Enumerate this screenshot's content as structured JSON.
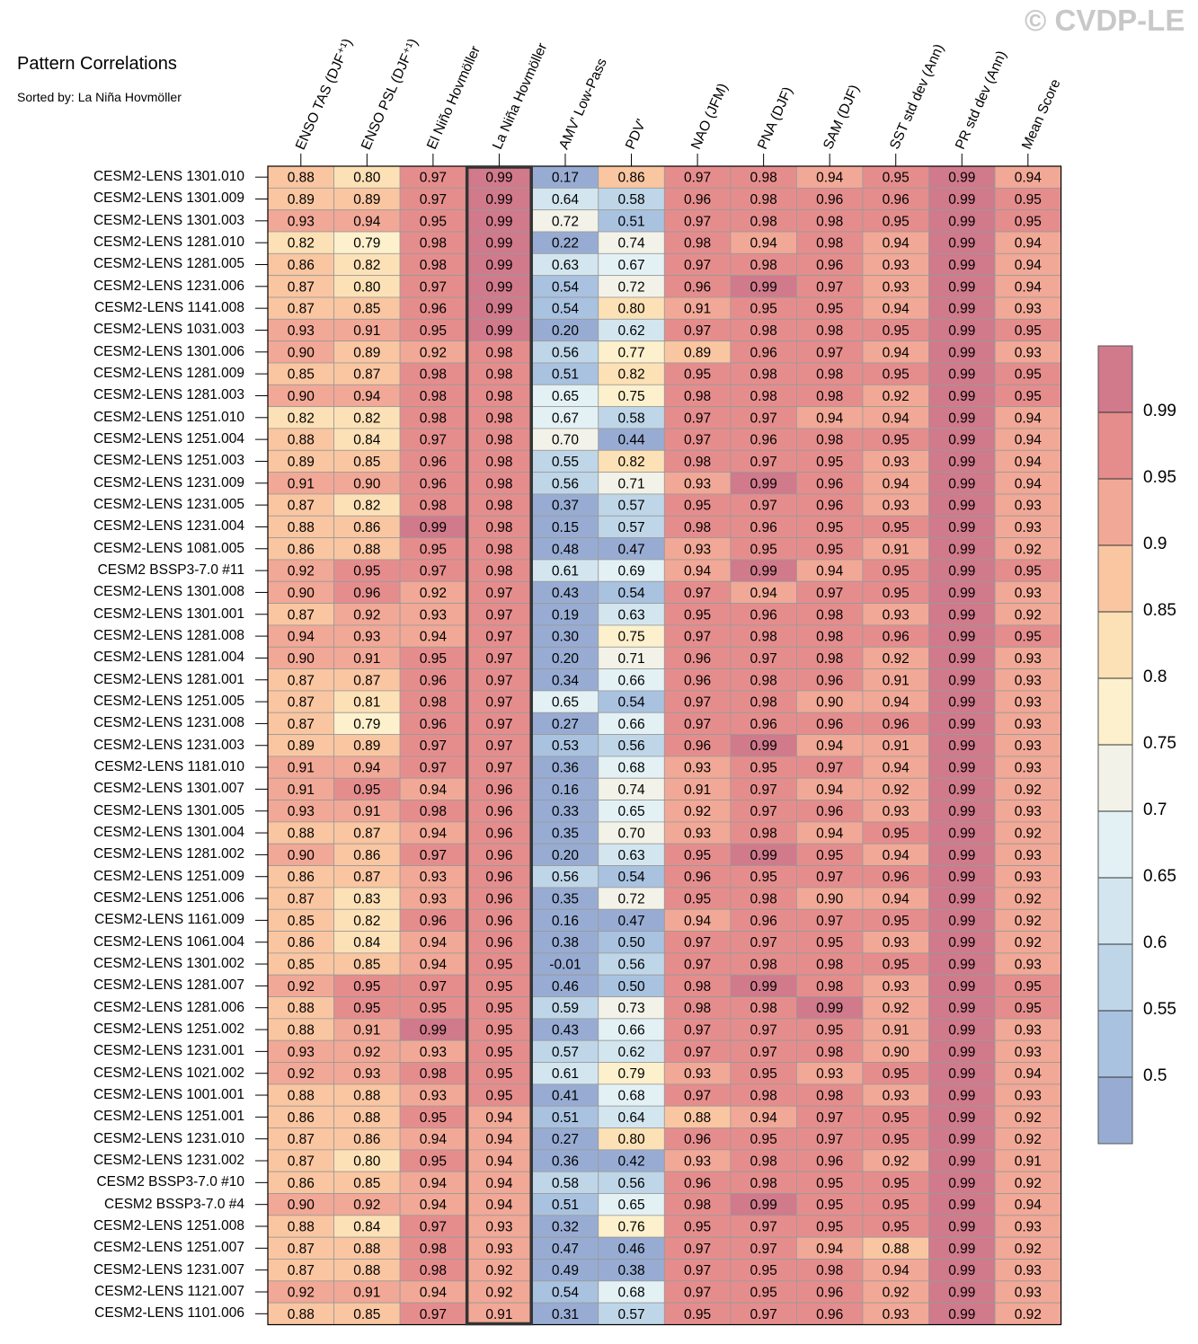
{
  "watermark": "© CVDP-LE",
  "title": "Pattern Correlations",
  "subtitle": "Sorted by: La Niña Hovmöller",
  "chart_data": {
    "type": "heatmap",
    "title": "Pattern Correlations",
    "subtitle": "Sorted by: La Niña Hovmöller",
    "highlighted_column": "La Niña Hovmöller",
    "columns": [
      "ENSO TAS (DJF⁺¹)",
      "ENSO PSL (DJF⁺¹)",
      "El Niño Hovmöller",
      "La Niña Hovmöller",
      "AMV' Low-Pass",
      "PDV'",
      "NAO (JFM)",
      "PNA (DJF)",
      "SAM (DJF)",
      "SST std dev (Ann)",
      "PR std dev (Ann)",
      "Mean Score"
    ],
    "rows": [
      "CESM2-LENS 1301.010",
      "CESM2-LENS 1301.009",
      "CESM2-LENS 1301.003",
      "CESM2-LENS 1281.010",
      "CESM2-LENS 1281.005",
      "CESM2-LENS 1231.006",
      "CESM2-LENS 1141.008",
      "CESM2-LENS 1031.003",
      "CESM2-LENS 1301.006",
      "CESM2-LENS 1281.009",
      "CESM2-LENS 1281.003",
      "CESM2-LENS 1251.010",
      "CESM2-LENS 1251.004",
      "CESM2-LENS 1251.003",
      "CESM2-LENS 1231.009",
      "CESM2-LENS 1231.005",
      "CESM2-LENS 1231.004",
      "CESM2-LENS 1081.005",
      "CESM2 BSSP3-7.0 #11",
      "CESM2-LENS 1301.008",
      "CESM2-LENS 1301.001",
      "CESM2-LENS 1281.008",
      "CESM2-LENS 1281.004",
      "CESM2-LENS 1281.001",
      "CESM2-LENS 1251.005",
      "CESM2-LENS 1231.008",
      "CESM2-LENS 1231.003",
      "CESM2-LENS 1181.010",
      "CESM2-LENS 1301.007",
      "CESM2-LENS 1301.005",
      "CESM2-LENS 1301.004",
      "CESM2-LENS 1281.002",
      "CESM2-LENS 1251.009",
      "CESM2-LENS 1251.006",
      "CESM2-LENS 1161.009",
      "CESM2-LENS 1061.004",
      "CESM2-LENS 1301.002",
      "CESM2-LENS 1281.007",
      "CESM2-LENS 1281.006",
      "CESM2-LENS 1251.002",
      "CESM2-LENS 1231.001",
      "CESM2-LENS 1021.002",
      "CESM2-LENS 1001.001",
      "CESM2-LENS 1251.001",
      "CESM2-LENS 1231.010",
      "CESM2-LENS 1231.002",
      "CESM2 BSSP3-7.0 #10",
      "CESM2 BSSP3-7.0 #4",
      "CESM2-LENS 1251.008",
      "CESM2-LENS 1251.007",
      "CESM2-LENS 1231.007",
      "CESM2-LENS 1121.007",
      "CESM2-LENS 1101.006"
    ],
    "values": [
      [
        "0.88",
        "0.80",
        "0.97",
        "0.99",
        "0.17",
        "0.86",
        "0.97",
        "0.98",
        "0.94",
        "0.95",
        "0.99",
        "0.94"
      ],
      [
        "0.89",
        "0.89",
        "0.97",
        "0.99",
        "0.64",
        "0.58",
        "0.96",
        "0.98",
        "0.96",
        "0.96",
        "0.99",
        "0.95"
      ],
      [
        "0.93",
        "0.94",
        "0.95",
        "0.99",
        "0.72",
        "0.51",
        "0.97",
        "0.98",
        "0.98",
        "0.95",
        "0.99",
        "0.95"
      ],
      [
        "0.82",
        "0.79",
        "0.98",
        "0.99",
        "0.22",
        "0.74",
        "0.98",
        "0.94",
        "0.98",
        "0.94",
        "0.99",
        "0.94"
      ],
      [
        "0.86",
        "0.82",
        "0.98",
        "0.99",
        "0.63",
        "0.67",
        "0.97",
        "0.98",
        "0.96",
        "0.93",
        "0.99",
        "0.94"
      ],
      [
        "0.87",
        "0.80",
        "0.97",
        "0.99",
        "0.54",
        "0.72",
        "0.96",
        "0.99",
        "0.97",
        "0.93",
        "0.99",
        "0.94"
      ],
      [
        "0.87",
        "0.85",
        "0.96",
        "0.99",
        "0.54",
        "0.80",
        "0.91",
        "0.95",
        "0.95",
        "0.94",
        "0.99",
        "0.93"
      ],
      [
        "0.93",
        "0.91",
        "0.95",
        "0.99",
        "0.20",
        "0.62",
        "0.97",
        "0.98",
        "0.98",
        "0.95",
        "0.99",
        "0.95"
      ],
      [
        "0.90",
        "0.89",
        "0.92",
        "0.98",
        "0.56",
        "0.77",
        "0.89",
        "0.96",
        "0.97",
        "0.94",
        "0.99",
        "0.93"
      ],
      [
        "0.85",
        "0.87",
        "0.98",
        "0.98",
        "0.51",
        "0.82",
        "0.95",
        "0.98",
        "0.98",
        "0.95",
        "0.99",
        "0.95"
      ],
      [
        "0.90",
        "0.94",
        "0.98",
        "0.98",
        "0.65",
        "0.75",
        "0.98",
        "0.98",
        "0.98",
        "0.92",
        "0.99",
        "0.95"
      ],
      [
        "0.82",
        "0.82",
        "0.98",
        "0.98",
        "0.67",
        "0.58",
        "0.97",
        "0.97",
        "0.94",
        "0.94",
        "0.99",
        "0.94"
      ],
      [
        "0.88",
        "0.84",
        "0.97",
        "0.98",
        "0.70",
        "0.44",
        "0.97",
        "0.96",
        "0.98",
        "0.95",
        "0.99",
        "0.94"
      ],
      [
        "0.89",
        "0.85",
        "0.96",
        "0.98",
        "0.55",
        "0.82",
        "0.98",
        "0.97",
        "0.95",
        "0.93",
        "0.99",
        "0.94"
      ],
      [
        "0.91",
        "0.90",
        "0.96",
        "0.98",
        "0.56",
        "0.71",
        "0.93",
        "0.99",
        "0.96",
        "0.94",
        "0.99",
        "0.94"
      ],
      [
        "0.87",
        "0.82",
        "0.98",
        "0.98",
        "0.37",
        "0.57",
        "0.95",
        "0.97",
        "0.96",
        "0.93",
        "0.99",
        "0.93"
      ],
      [
        "0.88",
        "0.86",
        "0.99",
        "0.98",
        "0.15",
        "0.57",
        "0.98",
        "0.96",
        "0.95",
        "0.95",
        "0.99",
        "0.93"
      ],
      [
        "0.86",
        "0.88",
        "0.95",
        "0.98",
        "0.48",
        "0.47",
        "0.93",
        "0.95",
        "0.95",
        "0.91",
        "0.99",
        "0.92"
      ],
      [
        "0.92",
        "0.95",
        "0.97",
        "0.98",
        "0.61",
        "0.69",
        "0.94",
        "0.99",
        "0.94",
        "0.95",
        "0.99",
        "0.95"
      ],
      [
        "0.90",
        "0.96",
        "0.92",
        "0.97",
        "0.43",
        "0.54",
        "0.97",
        "0.94",
        "0.97",
        "0.95",
        "0.99",
        "0.93"
      ],
      [
        "0.87",
        "0.92",
        "0.93",
        "0.97",
        "0.19",
        "0.63",
        "0.95",
        "0.96",
        "0.98",
        "0.93",
        "0.99",
        "0.92"
      ],
      [
        "0.94",
        "0.93",
        "0.94",
        "0.97",
        "0.30",
        "0.75",
        "0.97",
        "0.98",
        "0.98",
        "0.96",
        "0.99",
        "0.95"
      ],
      [
        "0.90",
        "0.91",
        "0.95",
        "0.97",
        "0.20",
        "0.71",
        "0.96",
        "0.97",
        "0.98",
        "0.92",
        "0.99",
        "0.93"
      ],
      [
        "0.87",
        "0.87",
        "0.96",
        "0.97",
        "0.34",
        "0.66",
        "0.96",
        "0.98",
        "0.96",
        "0.91",
        "0.99",
        "0.93"
      ],
      [
        "0.87",
        "0.81",
        "0.98",
        "0.97",
        "0.65",
        "0.54",
        "0.97",
        "0.98",
        "0.90",
        "0.94",
        "0.99",
        "0.93"
      ],
      [
        "0.87",
        "0.79",
        "0.96",
        "0.97",
        "0.27",
        "0.66",
        "0.97",
        "0.96",
        "0.96",
        "0.96",
        "0.99",
        "0.93"
      ],
      [
        "0.89",
        "0.89",
        "0.97",
        "0.97",
        "0.53",
        "0.56",
        "0.96",
        "0.99",
        "0.94",
        "0.91",
        "0.99",
        "0.93"
      ],
      [
        "0.91",
        "0.94",
        "0.97",
        "0.97",
        "0.36",
        "0.68",
        "0.93",
        "0.95",
        "0.97",
        "0.94",
        "0.99",
        "0.93"
      ],
      [
        "0.91",
        "0.95",
        "0.94",
        "0.96",
        "0.16",
        "0.74",
        "0.91",
        "0.97",
        "0.94",
        "0.92",
        "0.99",
        "0.92"
      ],
      [
        "0.93",
        "0.91",
        "0.98",
        "0.96",
        "0.33",
        "0.65",
        "0.92",
        "0.97",
        "0.96",
        "0.93",
        "0.99",
        "0.93"
      ],
      [
        "0.88",
        "0.87",
        "0.94",
        "0.96",
        "0.35",
        "0.70",
        "0.93",
        "0.98",
        "0.94",
        "0.95",
        "0.99",
        "0.92"
      ],
      [
        "0.90",
        "0.86",
        "0.97",
        "0.96",
        "0.20",
        "0.63",
        "0.95",
        "0.99",
        "0.95",
        "0.94",
        "0.99",
        "0.93"
      ],
      [
        "0.86",
        "0.87",
        "0.93",
        "0.96",
        "0.56",
        "0.54",
        "0.96",
        "0.95",
        "0.97",
        "0.96",
        "0.99",
        "0.93"
      ],
      [
        "0.87",
        "0.83",
        "0.93",
        "0.96",
        "0.35",
        "0.72",
        "0.95",
        "0.98",
        "0.90",
        "0.94",
        "0.99",
        "0.92"
      ],
      [
        "0.85",
        "0.82",
        "0.96",
        "0.96",
        "0.16",
        "0.47",
        "0.94",
        "0.96",
        "0.97",
        "0.95",
        "0.99",
        "0.92"
      ],
      [
        "0.86",
        "0.84",
        "0.94",
        "0.96",
        "0.38",
        "0.50",
        "0.97",
        "0.97",
        "0.95",
        "0.93",
        "0.99",
        "0.92"
      ],
      [
        "0.85",
        "0.85",
        "0.94",
        "0.95",
        "-0.01",
        "0.56",
        "0.97",
        "0.98",
        "0.98",
        "0.95",
        "0.99",
        "0.93"
      ],
      [
        "0.92",
        "0.95",
        "0.97",
        "0.95",
        "0.46",
        "0.50",
        "0.98",
        "0.99",
        "0.98",
        "0.93",
        "0.99",
        "0.95"
      ],
      [
        "0.88",
        "0.95",
        "0.95",
        "0.95",
        "0.59",
        "0.73",
        "0.98",
        "0.98",
        "0.99",
        "0.92",
        "0.99",
        "0.95"
      ],
      [
        "0.88",
        "0.91",
        "0.99",
        "0.95",
        "0.43",
        "0.66",
        "0.97",
        "0.97",
        "0.95",
        "0.91",
        "0.99",
        "0.93"
      ],
      [
        "0.93",
        "0.92",
        "0.93",
        "0.95",
        "0.57",
        "0.62",
        "0.97",
        "0.97",
        "0.98",
        "0.90",
        "0.99",
        "0.93"
      ],
      [
        "0.92",
        "0.93",
        "0.98",
        "0.95",
        "0.61",
        "0.79",
        "0.93",
        "0.95",
        "0.93",
        "0.95",
        "0.99",
        "0.94"
      ],
      [
        "0.88",
        "0.88",
        "0.93",
        "0.95",
        "0.41",
        "0.68",
        "0.97",
        "0.98",
        "0.98",
        "0.93",
        "0.99",
        "0.93"
      ],
      [
        "0.86",
        "0.88",
        "0.95",
        "0.94",
        "0.51",
        "0.64",
        "0.88",
        "0.94",
        "0.97",
        "0.95",
        "0.99",
        "0.92"
      ],
      [
        "0.87",
        "0.86",
        "0.94",
        "0.94",
        "0.27",
        "0.80",
        "0.96",
        "0.95",
        "0.97",
        "0.95",
        "0.99",
        "0.92"
      ],
      [
        "0.87",
        "0.80",
        "0.95",
        "0.94",
        "0.36",
        "0.42",
        "0.93",
        "0.98",
        "0.96",
        "0.92",
        "0.99",
        "0.91"
      ],
      [
        "0.86",
        "0.85",
        "0.94",
        "0.94",
        "0.58",
        "0.56",
        "0.96",
        "0.98",
        "0.95",
        "0.95",
        "0.99",
        "0.92"
      ],
      [
        "0.90",
        "0.92",
        "0.94",
        "0.94",
        "0.51",
        "0.65",
        "0.98",
        "0.99",
        "0.95",
        "0.95",
        "0.99",
        "0.94"
      ],
      [
        "0.88",
        "0.84",
        "0.97",
        "0.93",
        "0.32",
        "0.76",
        "0.95",
        "0.97",
        "0.95",
        "0.95",
        "0.99",
        "0.93"
      ],
      [
        "0.87",
        "0.88",
        "0.98",
        "0.93",
        "0.47",
        "0.46",
        "0.97",
        "0.97",
        "0.94",
        "0.88",
        "0.99",
        "0.92"
      ],
      [
        "0.87",
        "0.88",
        "0.98",
        "0.92",
        "0.49",
        "0.38",
        "0.97",
        "0.95",
        "0.98",
        "0.94",
        "0.99",
        "0.93"
      ],
      [
        "0.92",
        "0.91",
        "0.94",
        "0.92",
        "0.54",
        "0.68",
        "0.97",
        "0.95",
        "0.96",
        "0.92",
        "0.99",
        "0.93"
      ],
      [
        "0.88",
        "0.85",
        "0.97",
        "0.91",
        "0.31",
        "0.57",
        "0.95",
        "0.97",
        "0.96",
        "0.93",
        "0.99",
        "0.92"
      ]
    ],
    "colorbar": {
      "ticks": [
        "0.99",
        "0.95",
        "0.9",
        "0.85",
        "0.8",
        "0.75",
        "0.7",
        "0.65",
        "0.6",
        "0.55",
        "0.5"
      ],
      "levels": [
        0.5,
        0.55,
        0.6,
        0.65,
        0.7,
        0.75,
        0.8,
        0.85,
        0.9,
        0.95,
        0.99
      ],
      "colors": [
        "#98acd3",
        "#a9c2e0",
        "#bfd6e8",
        "#d3e6ef",
        "#e3f1f5",
        "#f3f2e8",
        "#fdf0cc",
        "#fde1b6",
        "#f9c6a1",
        "#f1a896",
        "#e58d8d",
        "#d07a8c"
      ]
    }
  }
}
